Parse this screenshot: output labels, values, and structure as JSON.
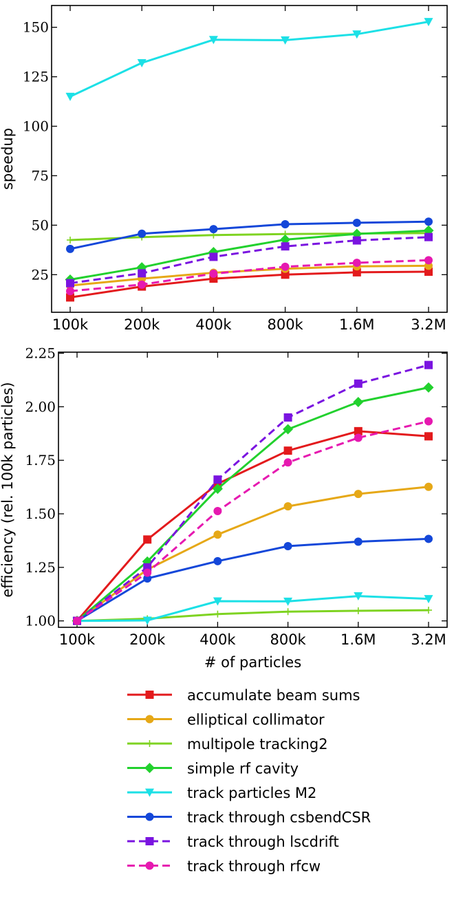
{
  "chart_data": [
    {
      "type": "line",
      "title": "",
      "xlabel": "",
      "ylabel": "speedup",
      "categories": [
        "100k",
        "200k",
        "400k",
        "800k",
        "1.6M",
        "3.2M"
      ],
      "ylim": [
        6,
        161
      ],
      "yticks": [
        25,
        50,
        75,
        100,
        125,
        150
      ],
      "ytick_labels": [
        "25",
        "50",
        "75",
        "100",
        "125",
        "150"
      ],
      "series": [
        {
          "name": "accumulate beam sums",
          "values": [
            13.5,
            19,
            23,
            25,
            26.2,
            26.5
          ]
        },
        {
          "name": "elliptical collimator",
          "values": [
            19.5,
            23,
            26,
            28,
            29.2,
            29.5
          ]
        },
        {
          "name": "multipole tracking2",
          "values": [
            42.5,
            44,
            45,
            45.5,
            45.8,
            46
          ]
        },
        {
          "name": "simple rf cavity",
          "values": [
            22.5,
            28.7,
            36.4,
            42.7,
            45.6,
            47.3
          ]
        },
        {
          "name": "track particles M2",
          "values": [
            115,
            132,
            143.7,
            143.5,
            146.5,
            152.8
          ]
        },
        {
          "name": "track through csbendCSR",
          "values": [
            38,
            45.7,
            48,
            50.5,
            51.2,
            51.8
          ]
        },
        {
          "name": "track through lscdrift",
          "values": [
            20.7,
            25.7,
            34,
            39.3,
            42.3,
            44
          ]
        },
        {
          "name": "track through rfcw",
          "values": [
            16.7,
            20,
            25.5,
            29,
            31,
            32.3
          ]
        }
      ]
    },
    {
      "type": "line",
      "title": "",
      "xlabel": "# of particles",
      "ylabel": "efficiency (rel. 100k particles)",
      "categories": [
        "100k",
        "200k",
        "400k",
        "800k",
        "1.6M",
        "3.2M"
      ],
      "ylim": [
        0.97,
        2.255
      ],
      "yticks": [
        1.0,
        1.25,
        1.5,
        1.75,
        2.0,
        2.25
      ],
      "ytick_labels": [
        "1.00",
        "1.25",
        "1.50",
        "1.75",
        "2.00",
        "2.25"
      ],
      "series": [
        {
          "name": "accumulate beam sums",
          "values": [
            1.0,
            1.38,
            1.64,
            1.795,
            1.886,
            1.862
          ]
        },
        {
          "name": "elliptical collimator",
          "values": [
            1.0,
            1.24,
            1.403,
            1.535,
            1.593,
            1.626
          ]
        },
        {
          "name": "multipole tracking2",
          "values": [
            1.0,
            1.01,
            1.032,
            1.043,
            1.047,
            1.05
          ]
        },
        {
          "name": "simple rf cavity",
          "values": [
            1.0,
            1.277,
            1.617,
            1.895,
            2.022,
            2.09
          ]
        },
        {
          "name": "track particles M2",
          "values": [
            1.0,
            1.002,
            1.092,
            1.091,
            1.116,
            1.103
          ]
        },
        {
          "name": "track through csbendCSR",
          "values": [
            1.0,
            1.198,
            1.279,
            1.349,
            1.37,
            1.383
          ]
        },
        {
          "name": "track through lscdrift",
          "values": [
            1.0,
            1.25,
            1.66,
            1.95,
            2.108,
            2.195
          ]
        },
        {
          "name": "track through rfcw",
          "values": [
            1.0,
            1.225,
            1.513,
            1.74,
            1.855,
            1.932
          ]
        }
      ]
    }
  ],
  "legend": {
    "position": "bottom-center",
    "entries": [
      {
        "label": "accumulate beam sums",
        "color": "#e31a1c",
        "marker": "square",
        "dashed": false
      },
      {
        "label": "elliptical collimator",
        "color": "#e6a817",
        "marker": "circle",
        "dashed": false
      },
      {
        "label": "multipole tracking2",
        "color": "#7ed321",
        "marker": "plus",
        "dashed": false
      },
      {
        "label": "simple rf cavity",
        "color": "#22d12e",
        "marker": "diamond",
        "dashed": false
      },
      {
        "label": "track particles M2",
        "color": "#1ce0e6",
        "marker": "triangle-down",
        "dashed": false
      },
      {
        "label": "track through csbendCSR",
        "color": "#1447d9",
        "marker": "circle",
        "dashed": false
      },
      {
        "label": "track through lscdrift",
        "color": "#7a14e0",
        "marker": "square",
        "dashed": true
      },
      {
        "label": "track through rfcw",
        "color": "#e619b0",
        "marker": "circle",
        "dashed": true
      }
    ]
  }
}
